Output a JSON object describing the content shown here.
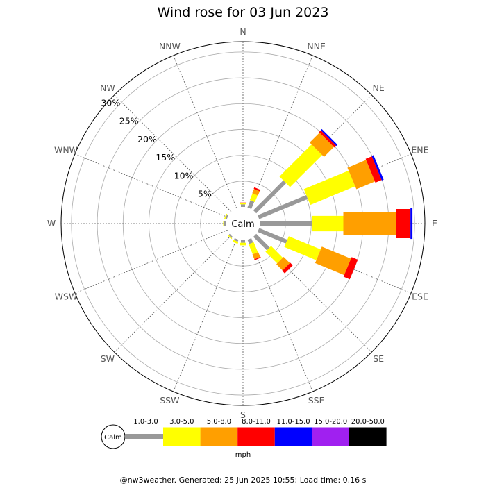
{
  "chart_data": {
    "type": "windrose",
    "title": "Wind rose for 03 Jun 2023",
    "directions": [
      "N",
      "NNE",
      "NE",
      "ENE",
      "E",
      "ESE",
      "SE",
      "SSE",
      "S",
      "SSW",
      "SW",
      "WSW",
      "W",
      "WNW",
      "NW",
      "NNW"
    ],
    "ring_labels": [
      "5%",
      "10%",
      "15%",
      "20%",
      "25%",
      "30%"
    ],
    "rmax_percent": 32,
    "calm_label": "Calm",
    "speed_bins": [
      "1.0-3.0",
      "3.0-5.0",
      "5.0-8.0",
      "8.0-11.0",
      "11.0-15.0",
      "15.0-20.0",
      "20.0-50.0"
    ],
    "bin_colors": [
      "#999999",
      "#ffff00",
      "#ff9f00",
      "#ff0000",
      "#0000ff",
      "#a020f0",
      "#000000"
    ],
    "units": "mph",
    "series": [
      {
        "direction": "N",
        "cumulative_percent": [
          0.5,
          0.7,
          0.8,
          0.85
        ]
      },
      {
        "direction": "NNE",
        "cumulative_percent": [
          1.5,
          2.9,
          3.8,
          4.1
        ]
      },
      {
        "direction": "NE",
        "cumulative_percent": [
          8.2,
          17.0,
          19.7,
          20.2,
          20.5
        ]
      },
      {
        "direction": "ENE",
        "cumulative_percent": [
          10.2,
          19.6,
          23.5,
          24.8,
          25.2
        ]
      },
      {
        "direction": "E",
        "cumulative_percent": [
          10.2,
          16.2,
          26.4,
          29.2,
          29.6
        ]
      },
      {
        "direction": "ESE",
        "cumulative_percent": [
          5.9,
          12.6,
          18.7,
          20.0
        ]
      },
      {
        "direction": "SE",
        "cumulative_percent": [
          3.7,
          6.9,
          8.6,
          9.3
        ]
      },
      {
        "direction": "SSE",
        "cumulative_percent": [
          0.9,
          3.0,
          4.0,
          4.2
        ]
      },
      {
        "direction": "S",
        "cumulative_percent": [
          0.5,
          1.0
        ]
      },
      {
        "direction": "SSW",
        "cumulative_percent": [
          0.4,
          0.8
        ]
      },
      {
        "direction": "SW",
        "cumulative_percent": [
          0.3,
          0.5
        ]
      },
      {
        "direction": "WNW",
        "cumulative_percent": [
          0.3,
          0.5
        ]
      },
      {
        "direction": "W",
        "cumulative_percent": [
          0.4,
          0.6
        ]
      }
    ]
  },
  "footer": "@nw3weather. Generated: 25 Jun 2025 10:55; Load time: 0.16 s"
}
